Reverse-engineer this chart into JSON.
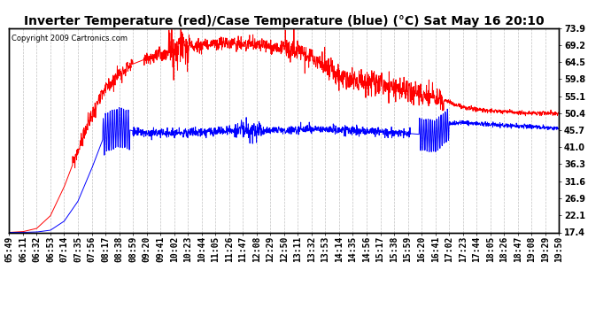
{
  "title": "Inverter Temperature (red)/Case Temperature (blue) (°C) Sat May 16 20:10",
  "copyright": "Copyright 2009 Cartronics.com",
  "y_ticks": [
    17.4,
    22.1,
    26.9,
    31.6,
    36.3,
    41.0,
    45.7,
    50.4,
    55.1,
    59.8,
    64.5,
    69.2,
    73.9
  ],
  "y_min": 17.4,
  "y_max": 73.9,
  "x_labels": [
    "05:49",
    "06:11",
    "06:32",
    "06:53",
    "07:14",
    "07:35",
    "07:56",
    "08:17",
    "08:38",
    "08:59",
    "09:20",
    "09:41",
    "10:02",
    "10:23",
    "10:44",
    "11:05",
    "11:26",
    "11:47",
    "12:08",
    "12:29",
    "12:50",
    "13:11",
    "13:32",
    "13:53",
    "14:14",
    "14:35",
    "14:56",
    "15:17",
    "15:38",
    "15:59",
    "16:20",
    "16:41",
    "17:02",
    "17:23",
    "17:44",
    "18:05",
    "18:26",
    "18:47",
    "19:08",
    "19:29",
    "19:50"
  ],
  "background_color": "#ffffff",
  "plot_bg_color": "#ffffff",
  "grid_color": "#bbbbbb",
  "red_color": "#ff0000",
  "blue_color": "#0000ff",
  "title_fontsize": 10,
  "tick_fontsize": 7
}
